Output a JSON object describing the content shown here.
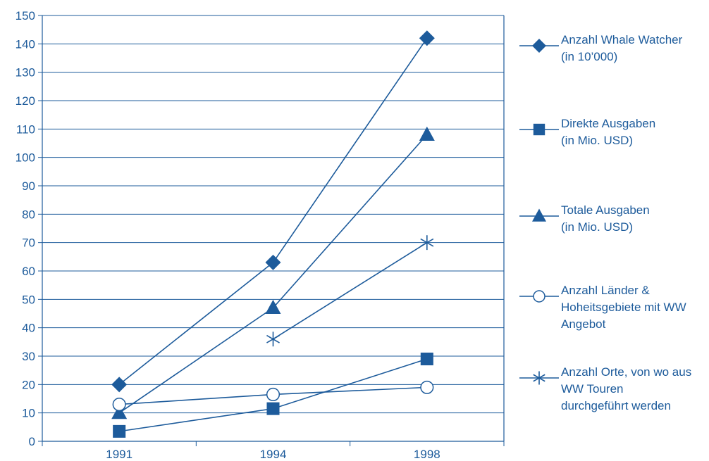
{
  "chart_data": {
    "type": "line",
    "title": "",
    "xlabel": "",
    "ylabel": "",
    "categories": [
      "1991",
      "1994",
      "1998"
    ],
    "ylim": [
      0,
      150
    ],
    "yticks": [
      0,
      10,
      20,
      30,
      40,
      50,
      60,
      70,
      80,
      90,
      100,
      110,
      120,
      130,
      140,
      150
    ],
    "grid": true,
    "legend_position": "right",
    "color": "#1d5b9b",
    "series": [
      {
        "name": "Anzahl Whale Watcher (in 10’000)",
        "lines": [
          "Anzahl Whale Watcher",
          "(in 10’000)"
        ],
        "marker": "diamond",
        "values": [
          20,
          63,
          142
        ]
      },
      {
        "name": "Direkte Ausgaben (in Mio. USD)",
        "lines": [
          "Direkte Ausgaben",
          "(in Mio. USD)"
        ],
        "marker": "square",
        "values": [
          3.5,
          11.5,
          29
        ]
      },
      {
        "name": "Totale Ausgaben (in Mio. USD)",
        "lines": [
          "Totale Ausgaben",
          "(in Mio. USD)"
        ],
        "marker": "triangle",
        "values": [
          10,
          47,
          108
        ]
      },
      {
        "name": "Anzahl Länder & Hoheitsgebiete mit WW Angebot",
        "lines": [
          "Anzahl Länder &",
          "Hoheitsgebiete mit WW",
          "Angebot"
        ],
        "marker": "circle",
        "values": [
          13,
          16.5,
          19
        ]
      },
      {
        "name": "Anzahl Orte, von wo aus WW Touren durchgeführt werden",
        "lines": [
          "Anzahl Orte, von wo aus",
          "WW Touren",
          "durchgeführt werden"
        ],
        "marker": "star",
        "values": [
          null,
          36,
          70
        ]
      }
    ]
  }
}
